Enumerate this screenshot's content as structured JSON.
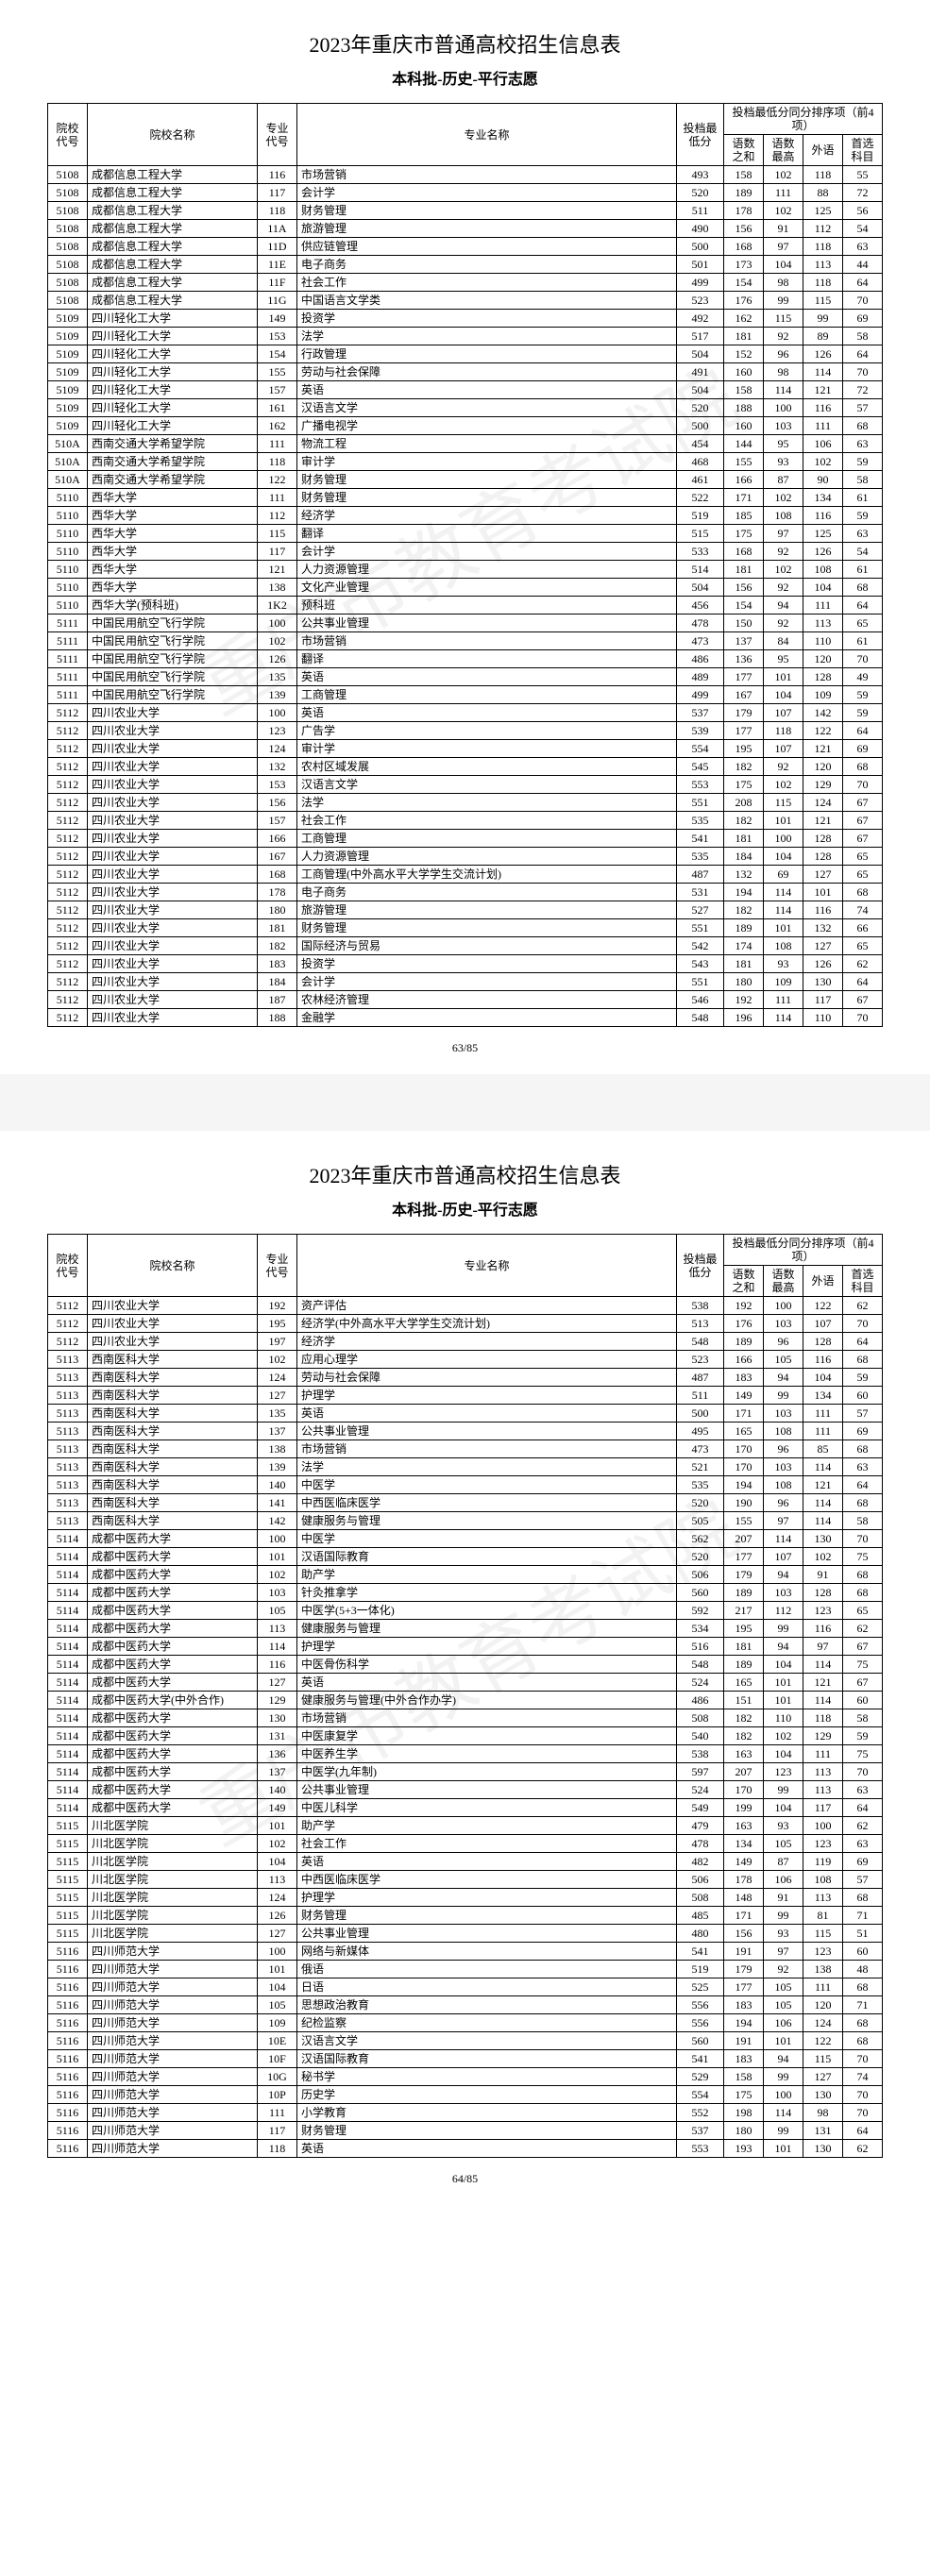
{
  "title": "2023年重庆市普通高校招生信息表",
  "subtitle": "本科批-历史-平行志愿",
  "headers": {
    "school_code": "院校代号",
    "school_name": "院校名称",
    "major_code": "专业代号",
    "major_name": "专业名称",
    "min_score": "投档最低分",
    "rank_group": "投档最低分同分排序项（前4项）",
    "sub1": "语数之和",
    "sub2": "语数最高",
    "sub3": "外语",
    "sub4": "首选科目"
  },
  "page1_num": "63/85",
  "page2_num": "64/85",
  "page1_rows": [
    [
      "5108",
      "成都信息工程大学",
      "116",
      "市场营销",
      "493",
      "158",
      "102",
      "118",
      "55"
    ],
    [
      "5108",
      "成都信息工程大学",
      "117",
      "会计学",
      "520",
      "189",
      "111",
      "88",
      "72"
    ],
    [
      "5108",
      "成都信息工程大学",
      "118",
      "财务管理",
      "511",
      "178",
      "102",
      "125",
      "56"
    ],
    [
      "5108",
      "成都信息工程大学",
      "11A",
      "旅游管理",
      "490",
      "156",
      "91",
      "112",
      "54"
    ],
    [
      "5108",
      "成都信息工程大学",
      "11D",
      "供应链管理",
      "500",
      "168",
      "97",
      "118",
      "63"
    ],
    [
      "5108",
      "成都信息工程大学",
      "11E",
      "电子商务",
      "501",
      "173",
      "104",
      "113",
      "44"
    ],
    [
      "5108",
      "成都信息工程大学",
      "11F",
      "社会工作",
      "499",
      "154",
      "98",
      "118",
      "64"
    ],
    [
      "5108",
      "成都信息工程大学",
      "11G",
      "中国语言文学类",
      "523",
      "176",
      "99",
      "115",
      "70"
    ],
    [
      "5109",
      "四川轻化工大学",
      "149",
      "投资学",
      "492",
      "162",
      "115",
      "99",
      "69"
    ],
    [
      "5109",
      "四川轻化工大学",
      "153",
      "法学",
      "517",
      "181",
      "92",
      "89",
      "58"
    ],
    [
      "5109",
      "四川轻化工大学",
      "154",
      "行政管理",
      "504",
      "152",
      "96",
      "126",
      "64"
    ],
    [
      "5109",
      "四川轻化工大学",
      "155",
      "劳动与社会保障",
      "491",
      "160",
      "98",
      "114",
      "70"
    ],
    [
      "5109",
      "四川轻化工大学",
      "157",
      "英语",
      "504",
      "158",
      "114",
      "121",
      "72"
    ],
    [
      "5109",
      "四川轻化工大学",
      "161",
      "汉语言文学",
      "520",
      "188",
      "100",
      "116",
      "57"
    ],
    [
      "5109",
      "四川轻化工大学",
      "162",
      "广播电视学",
      "500",
      "160",
      "103",
      "111",
      "68"
    ],
    [
      "510A",
      "西南交通大学希望学院",
      "111",
      "物流工程",
      "454",
      "144",
      "95",
      "106",
      "63"
    ],
    [
      "510A",
      "西南交通大学希望学院",
      "118",
      "审计学",
      "468",
      "155",
      "93",
      "102",
      "59"
    ],
    [
      "510A",
      "西南交通大学希望学院",
      "122",
      "财务管理",
      "461",
      "166",
      "87",
      "90",
      "58"
    ],
    [
      "5110",
      "西华大学",
      "111",
      "财务管理",
      "522",
      "171",
      "102",
      "134",
      "61"
    ],
    [
      "5110",
      "西华大学",
      "112",
      "经济学",
      "519",
      "185",
      "108",
      "116",
      "59"
    ],
    [
      "5110",
      "西华大学",
      "115",
      "翻译",
      "515",
      "175",
      "97",
      "125",
      "63"
    ],
    [
      "5110",
      "西华大学",
      "117",
      "会计学",
      "533",
      "168",
      "92",
      "126",
      "54"
    ],
    [
      "5110",
      "西华大学",
      "121",
      "人力资源管理",
      "514",
      "181",
      "102",
      "108",
      "61"
    ],
    [
      "5110",
      "西华大学",
      "138",
      "文化产业管理",
      "504",
      "156",
      "92",
      "104",
      "68"
    ],
    [
      "5110",
      "西华大学(预科班)",
      "1K2",
      "预科班",
      "456",
      "154",
      "94",
      "111",
      "64"
    ],
    [
      "5111",
      "中国民用航空飞行学院",
      "100",
      "公共事业管理",
      "478",
      "150",
      "92",
      "113",
      "65"
    ],
    [
      "5111",
      "中国民用航空飞行学院",
      "102",
      "市场营销",
      "473",
      "137",
      "84",
      "110",
      "61"
    ],
    [
      "5111",
      "中国民用航空飞行学院",
      "126",
      "翻译",
      "486",
      "136",
      "95",
      "120",
      "70"
    ],
    [
      "5111",
      "中国民用航空飞行学院",
      "135",
      "英语",
      "489",
      "177",
      "101",
      "128",
      "49"
    ],
    [
      "5111",
      "中国民用航空飞行学院",
      "139",
      "工商管理",
      "499",
      "167",
      "104",
      "109",
      "59"
    ],
    [
      "5112",
      "四川农业大学",
      "100",
      "英语",
      "537",
      "179",
      "107",
      "142",
      "59"
    ],
    [
      "5112",
      "四川农业大学",
      "123",
      "广告学",
      "539",
      "177",
      "118",
      "122",
      "64"
    ],
    [
      "5112",
      "四川农业大学",
      "124",
      "审计学",
      "554",
      "195",
      "107",
      "121",
      "69"
    ],
    [
      "5112",
      "四川农业大学",
      "132",
      "农村区域发展",
      "545",
      "182",
      "92",
      "120",
      "68"
    ],
    [
      "5112",
      "四川农业大学",
      "153",
      "汉语言文学",
      "553",
      "175",
      "102",
      "129",
      "70"
    ],
    [
      "5112",
      "四川农业大学",
      "156",
      "法学",
      "551",
      "208",
      "115",
      "124",
      "67"
    ],
    [
      "5112",
      "四川农业大学",
      "157",
      "社会工作",
      "535",
      "182",
      "101",
      "121",
      "67"
    ],
    [
      "5112",
      "四川农业大学",
      "166",
      "工商管理",
      "541",
      "181",
      "100",
      "128",
      "67"
    ],
    [
      "5112",
      "四川农业大学",
      "167",
      "人力资源管理",
      "535",
      "184",
      "104",
      "128",
      "65"
    ],
    [
      "5112",
      "四川农业大学",
      "168",
      "工商管理(中外高水平大学学生交流计划)",
      "487",
      "132",
      "69",
      "127",
      "65"
    ],
    [
      "5112",
      "四川农业大学",
      "178",
      "电子商务",
      "531",
      "194",
      "114",
      "101",
      "68"
    ],
    [
      "5112",
      "四川农业大学",
      "180",
      "旅游管理",
      "527",
      "182",
      "114",
      "116",
      "74"
    ],
    [
      "5112",
      "四川农业大学",
      "181",
      "财务管理",
      "551",
      "189",
      "101",
      "132",
      "66"
    ],
    [
      "5112",
      "四川农业大学",
      "182",
      "国际经济与贸易",
      "542",
      "174",
      "108",
      "127",
      "65"
    ],
    [
      "5112",
      "四川农业大学",
      "183",
      "投资学",
      "543",
      "181",
      "93",
      "126",
      "62"
    ],
    [
      "5112",
      "四川农业大学",
      "184",
      "会计学",
      "551",
      "180",
      "109",
      "130",
      "64"
    ],
    [
      "5112",
      "四川农业大学",
      "187",
      "农林经济管理",
      "546",
      "192",
      "111",
      "117",
      "67"
    ],
    [
      "5112",
      "四川农业大学",
      "188",
      "金融学",
      "548",
      "196",
      "114",
      "110",
      "70"
    ]
  ],
  "page2_rows": [
    [
      "5112",
      "四川农业大学",
      "192",
      "资产评估",
      "538",
      "192",
      "100",
      "122",
      "62"
    ],
    [
      "5112",
      "四川农业大学",
      "195",
      "经济学(中外高水平大学学生交流计划)",
      "513",
      "176",
      "103",
      "107",
      "70"
    ],
    [
      "5112",
      "四川农业大学",
      "197",
      "经济学",
      "548",
      "189",
      "96",
      "128",
      "64"
    ],
    [
      "5113",
      "西南医科大学",
      "102",
      "应用心理学",
      "523",
      "166",
      "105",
      "116",
      "68"
    ],
    [
      "5113",
      "西南医科大学",
      "124",
      "劳动与社会保障",
      "487",
      "183",
      "94",
      "104",
      "59"
    ],
    [
      "5113",
      "西南医科大学",
      "127",
      "护理学",
      "511",
      "149",
      "99",
      "134",
      "60"
    ],
    [
      "5113",
      "西南医科大学",
      "135",
      "英语",
      "500",
      "171",
      "103",
      "111",
      "57"
    ],
    [
      "5113",
      "西南医科大学",
      "137",
      "公共事业管理",
      "495",
      "165",
      "108",
      "111",
      "69"
    ],
    [
      "5113",
      "西南医科大学",
      "138",
      "市场营销",
      "473",
      "170",
      "96",
      "85",
      "68"
    ],
    [
      "5113",
      "西南医科大学",
      "139",
      "法学",
      "521",
      "170",
      "103",
      "114",
      "63"
    ],
    [
      "5113",
      "西南医科大学",
      "140",
      "中医学",
      "535",
      "194",
      "108",
      "121",
      "64"
    ],
    [
      "5113",
      "西南医科大学",
      "141",
      "中西医临床医学",
      "520",
      "190",
      "96",
      "114",
      "68"
    ],
    [
      "5113",
      "西南医科大学",
      "142",
      "健康服务与管理",
      "505",
      "155",
      "97",
      "114",
      "58"
    ],
    [
      "5114",
      "成都中医药大学",
      "100",
      "中医学",
      "562",
      "207",
      "114",
      "130",
      "70"
    ],
    [
      "5114",
      "成都中医药大学",
      "101",
      "汉语国际教育",
      "520",
      "177",
      "107",
      "102",
      "75"
    ],
    [
      "5114",
      "成都中医药大学",
      "102",
      "助产学",
      "506",
      "179",
      "94",
      "91",
      "68"
    ],
    [
      "5114",
      "成都中医药大学",
      "103",
      "针灸推拿学",
      "560",
      "189",
      "103",
      "128",
      "68"
    ],
    [
      "5114",
      "成都中医药大学",
      "105",
      "中医学(5+3一体化)",
      "592",
      "217",
      "112",
      "123",
      "65"
    ],
    [
      "5114",
      "成都中医药大学",
      "113",
      "健康服务与管理",
      "534",
      "195",
      "99",
      "116",
      "62"
    ],
    [
      "5114",
      "成都中医药大学",
      "114",
      "护理学",
      "516",
      "181",
      "94",
      "97",
      "67"
    ],
    [
      "5114",
      "成都中医药大学",
      "116",
      "中医骨伤科学",
      "548",
      "189",
      "104",
      "114",
      "75"
    ],
    [
      "5114",
      "成都中医药大学",
      "127",
      "英语",
      "524",
      "165",
      "101",
      "121",
      "67"
    ],
    [
      "5114",
      "成都中医药大学(中外合作)",
      "129",
      "健康服务与管理(中外合作办学)",
      "486",
      "151",
      "101",
      "114",
      "60"
    ],
    [
      "5114",
      "成都中医药大学",
      "130",
      "市场营销",
      "508",
      "182",
      "110",
      "118",
      "58"
    ],
    [
      "5114",
      "成都中医药大学",
      "131",
      "中医康复学",
      "540",
      "182",
      "102",
      "129",
      "59"
    ],
    [
      "5114",
      "成都中医药大学",
      "136",
      "中医养生学",
      "538",
      "163",
      "104",
      "111",
      "75"
    ],
    [
      "5114",
      "成都中医药大学",
      "137",
      "中医学(九年制)",
      "597",
      "207",
      "123",
      "113",
      "70"
    ],
    [
      "5114",
      "成都中医药大学",
      "140",
      "公共事业管理",
      "524",
      "170",
      "99",
      "113",
      "63"
    ],
    [
      "5114",
      "成都中医药大学",
      "149",
      "中医儿科学",
      "549",
      "199",
      "104",
      "117",
      "64"
    ],
    [
      "5115",
      "川北医学院",
      "101",
      "助产学",
      "479",
      "163",
      "93",
      "100",
      "62"
    ],
    [
      "5115",
      "川北医学院",
      "102",
      "社会工作",
      "478",
      "134",
      "105",
      "123",
      "63"
    ],
    [
      "5115",
      "川北医学院",
      "104",
      "英语",
      "482",
      "149",
      "87",
      "119",
      "69"
    ],
    [
      "5115",
      "川北医学院",
      "113",
      "中西医临床医学",
      "506",
      "178",
      "106",
      "108",
      "57"
    ],
    [
      "5115",
      "川北医学院",
      "124",
      "护理学",
      "508",
      "148",
      "91",
      "113",
      "68"
    ],
    [
      "5115",
      "川北医学院",
      "126",
      "财务管理",
      "485",
      "171",
      "99",
      "81",
      "71"
    ],
    [
      "5115",
      "川北医学院",
      "127",
      "公共事业管理",
      "480",
      "156",
      "93",
      "115",
      "51"
    ],
    [
      "5116",
      "四川师范大学",
      "100",
      "网络与新媒体",
      "541",
      "191",
      "97",
      "123",
      "60"
    ],
    [
      "5116",
      "四川师范大学",
      "101",
      "俄语",
      "519",
      "179",
      "92",
      "138",
      "48"
    ],
    [
      "5116",
      "四川师范大学",
      "104",
      "日语",
      "525",
      "177",
      "105",
      "111",
      "68"
    ],
    [
      "5116",
      "四川师范大学",
      "105",
      "思想政治教育",
      "556",
      "183",
      "105",
      "120",
      "71"
    ],
    [
      "5116",
      "四川师范大学",
      "109",
      "纪检监察",
      "556",
      "194",
      "106",
      "124",
      "68"
    ],
    [
      "5116",
      "四川师范大学",
      "10E",
      "汉语言文学",
      "560",
      "191",
      "101",
      "122",
      "68"
    ],
    [
      "5116",
      "四川师范大学",
      "10F",
      "汉语国际教育",
      "541",
      "183",
      "94",
      "115",
      "70"
    ],
    [
      "5116",
      "四川师范大学",
      "10G",
      "秘书学",
      "529",
      "158",
      "99",
      "127",
      "74"
    ],
    [
      "5116",
      "四川师范大学",
      "10P",
      "历史学",
      "554",
      "175",
      "100",
      "130",
      "70"
    ],
    [
      "5116",
      "四川师范大学",
      "111",
      "小学教育",
      "552",
      "198",
      "114",
      "98",
      "70"
    ],
    [
      "5116",
      "四川师范大学",
      "117",
      "财务管理",
      "537",
      "180",
      "99",
      "131",
      "64"
    ],
    [
      "5116",
      "四川师范大学",
      "118",
      "英语",
      "553",
      "193",
      "101",
      "130",
      "62"
    ]
  ]
}
